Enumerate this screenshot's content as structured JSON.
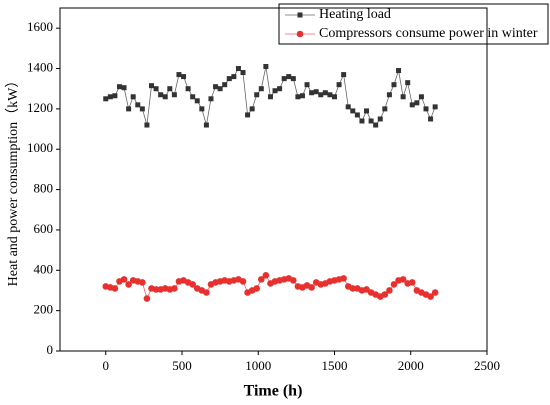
{
  "chart_data": {
    "type": "line",
    "x_label": "Time (h)",
    "y_label": "Heat and power consumption（kW）",
    "x": [
      0,
      30,
      60,
      90,
      120,
      150,
      180,
      210,
      240,
      270,
      300,
      330,
      360,
      390,
      420,
      450,
      480,
      510,
      540,
      570,
      600,
      630,
      660,
      690,
      720,
      750,
      780,
      810,
      840,
      870,
      900,
      930,
      960,
      990,
      1020,
      1050,
      1080,
      1110,
      1140,
      1170,
      1200,
      1230,
      1260,
      1290,
      1320,
      1350,
      1380,
      1410,
      1440,
      1470,
      1500,
      1530,
      1560,
      1590,
      1620,
      1650,
      1680,
      1710,
      1740,
      1770,
      1800,
      1830,
      1860,
      1890,
      1920,
      1950,
      1980,
      2010,
      2040,
      2070,
      2100,
      2130,
      2160
    ],
    "series": [
      {
        "name": "Heating load",
        "color": "#333333",
        "line_color": "#666666",
        "marker": "square",
        "values": [
          1250,
          1260,
          1265,
          1310,
          1305,
          1200,
          1260,
          1220,
          1200,
          1120,
          1315,
          1300,
          1270,
          1260,
          1300,
          1270,
          1370,
          1360,
          1300,
          1260,
          1240,
          1200,
          1120,
          1250,
          1310,
          1300,
          1320,
          1350,
          1360,
          1400,
          1380,
          1170,
          1200,
          1270,
          1300,
          1410,
          1260,
          1290,
          1300,
          1350,
          1360,
          1350,
          1260,
          1265,
          1320,
          1280,
          1285,
          1270,
          1280,
          1270,
          1260,
          1320,
          1370,
          1210,
          1190,
          1170,
          1140,
          1190,
          1140,
          1120,
          1150,
          1200,
          1270,
          1320,
          1390,
          1260,
          1330,
          1220,
          1230,
          1260,
          1200,
          1150,
          1210
        ]
      },
      {
        "name": "Compressors consume power in winter",
        "color": "#e8302f",
        "line_color": "#f06060",
        "marker": "circle",
        "values": [
          320,
          315,
          310,
          345,
          355,
          330,
          350,
          345,
          340,
          260,
          310,
          305,
          305,
          310,
          305,
          310,
          345,
          350,
          340,
          330,
          310,
          300,
          290,
          330,
          340,
          345,
          350,
          345,
          350,
          355,
          345,
          290,
          300,
          310,
          355,
          375,
          335,
          345,
          350,
          355,
          360,
          350,
          320,
          315,
          325,
          315,
          340,
          330,
          335,
          345,
          350,
          355,
          360,
          320,
          310,
          310,
          300,
          305,
          290,
          280,
          270,
          280,
          300,
          330,
          350,
          355,
          335,
          340,
          300,
          290,
          280,
          270,
          290
        ]
      }
    ],
    "xlim": [
      -300,
      2500
    ],
    "xticks": [
      0,
      500,
      1000,
      1500,
      2000,
      2500
    ],
    "ylim": [
      0,
      1700
    ],
    "yticks": [
      0,
      200,
      400,
      600,
      800,
      1000,
      1200,
      1400,
      1600
    ],
    "legend": "upper right"
  }
}
